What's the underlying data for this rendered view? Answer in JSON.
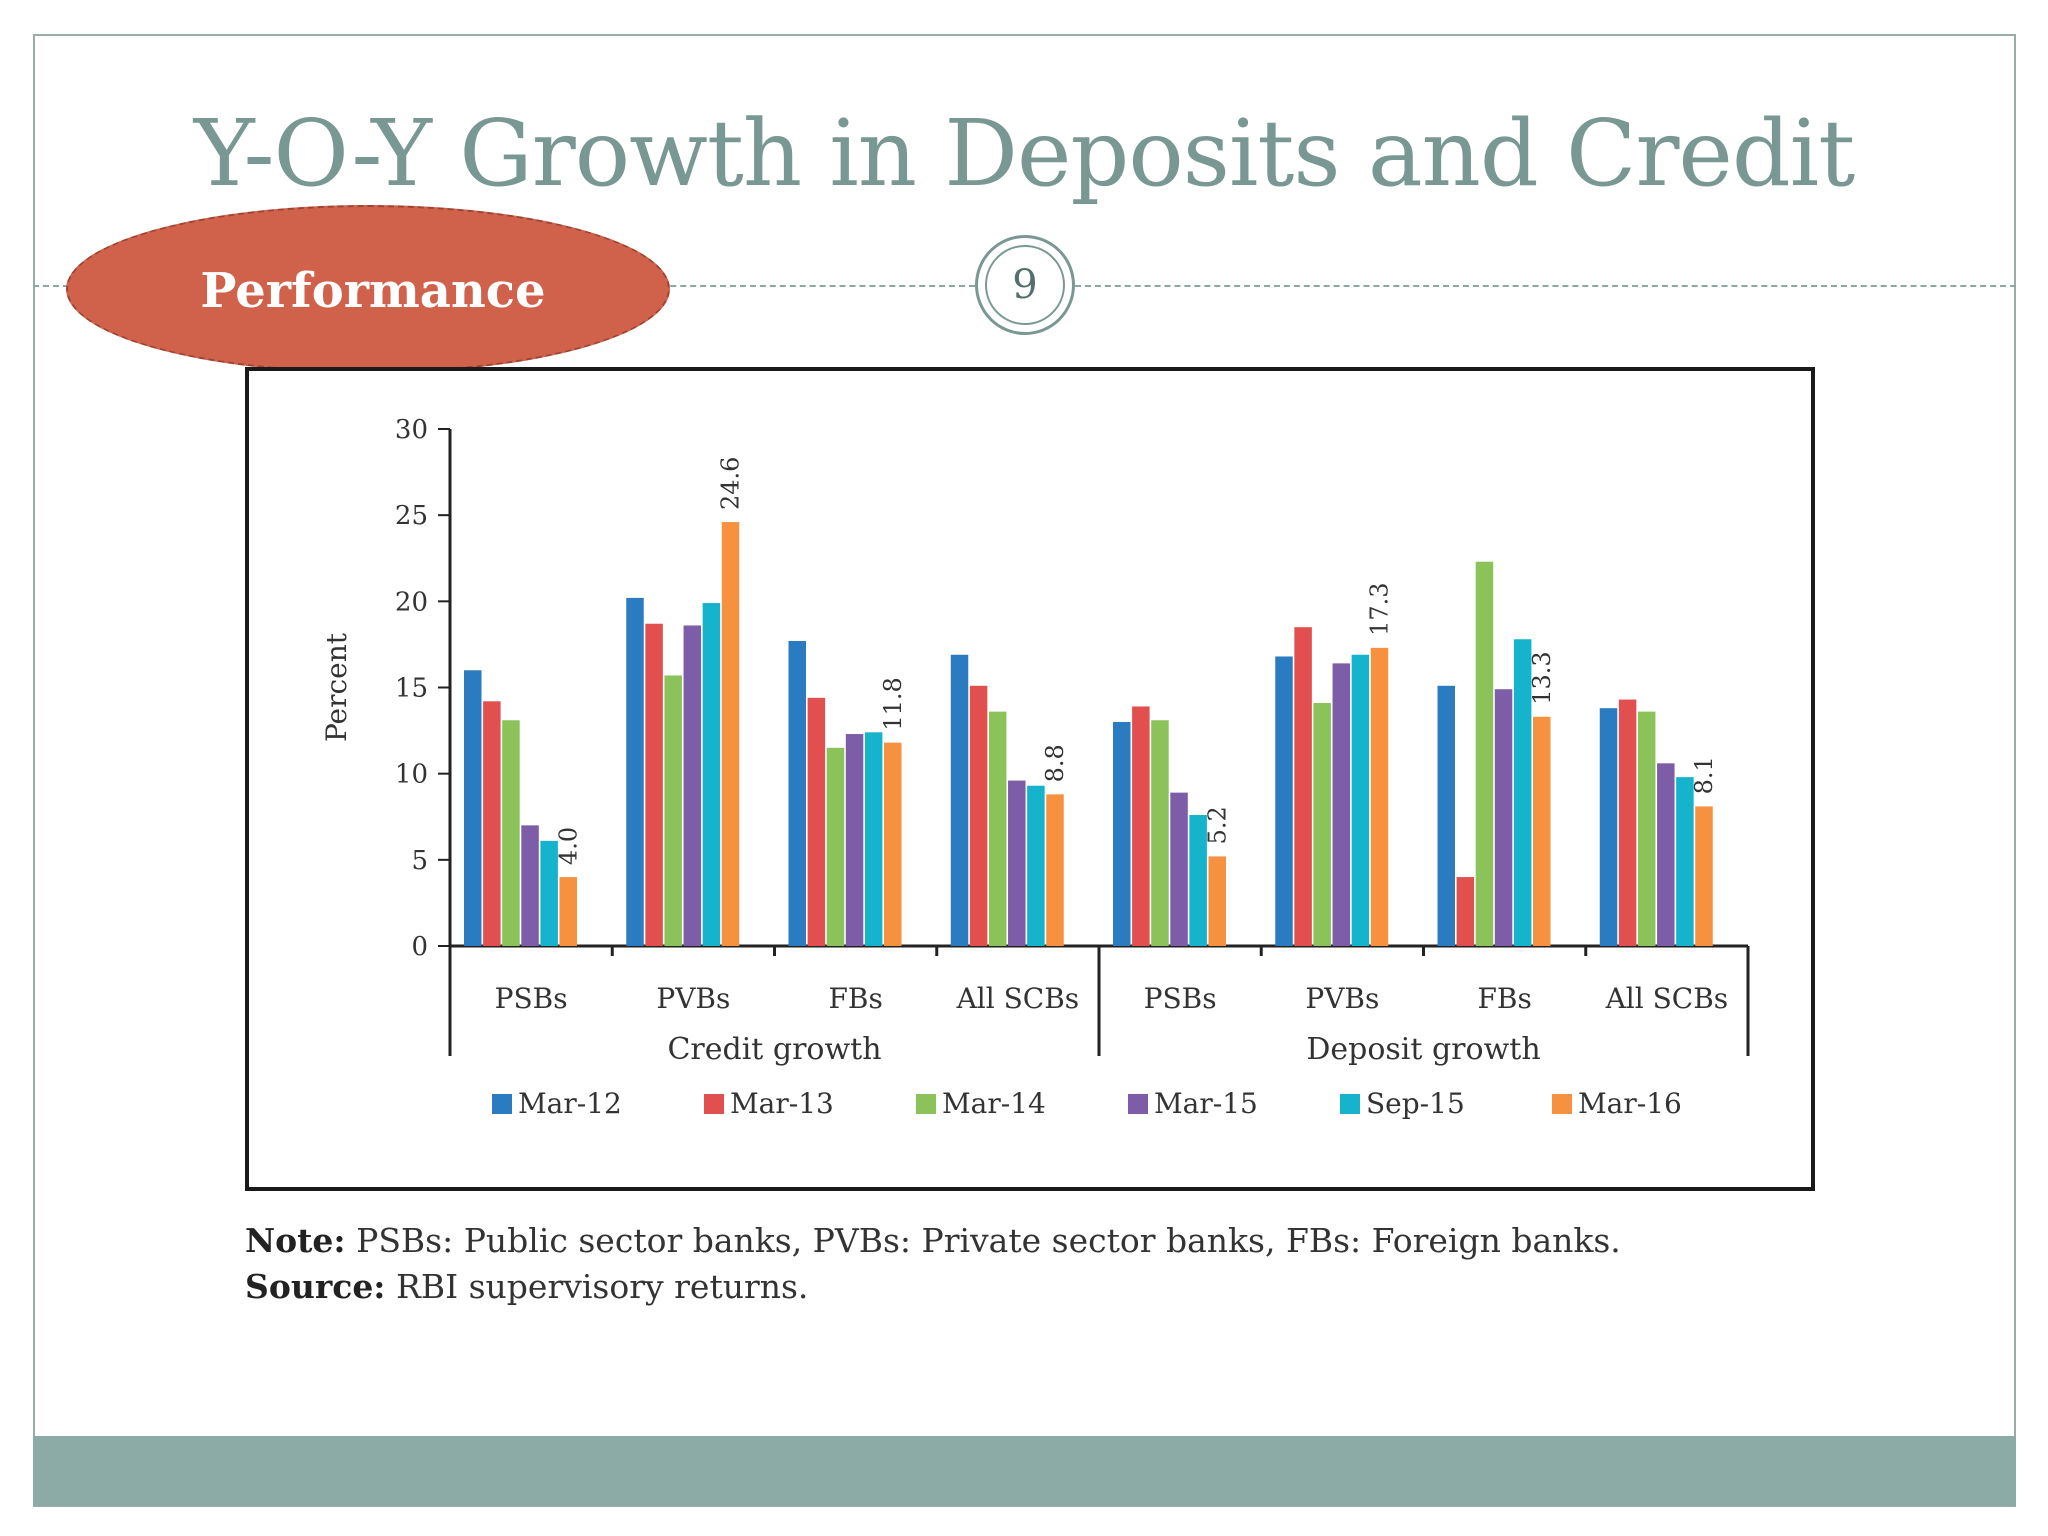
{
  "slide": {
    "title": "Y-O-Y Growth in Deposits and Credit",
    "badge": "Performance",
    "page_number": "9",
    "note_label": "Note:",
    "note_text": "PSBs: Public sector banks, PVBs: Private sector banks, FBs: Foreign banks.",
    "source_label": "Source:",
    "source_text": "RBI supervisory returns."
  },
  "colors": {
    "title": "#7a9893",
    "badge": "#d0624b",
    "band": "#8caba6"
  },
  "chart_data": {
    "type": "bar",
    "ylabel": "Percent",
    "ylim": [
      0,
      30
    ],
    "yticks": [
      "0",
      "5",
      "10",
      "15",
      "20",
      "25",
      "30"
    ],
    "groups": [
      {
        "label": "Credit growth",
        "categories": [
          "PSBs",
          "PVBs",
          "FBs",
          "All SCBs"
        ]
      },
      {
        "label": "Deposit growth",
        "categories": [
          "PSBs",
          "PVBs",
          "FBs",
          "All SCBs"
        ]
      }
    ],
    "series": [
      {
        "name": "Mar-12",
        "color": "#2b7bc0",
        "values": [
          16.0,
          20.2,
          17.7,
          16.9,
          13.0,
          16.8,
          15.1,
          13.8
        ]
      },
      {
        "name": "Mar-13",
        "color": "#e1504f",
        "values": [
          14.2,
          18.7,
          14.4,
          15.1,
          13.9,
          18.5,
          4.0,
          14.3
        ]
      },
      {
        "name": "Mar-14",
        "color": "#8bc35a",
        "values": [
          13.1,
          15.7,
          11.5,
          13.6,
          13.1,
          14.1,
          22.3,
          13.6
        ]
      },
      {
        "name": "Mar-15",
        "color": "#7e5da8",
        "values": [
          7.0,
          18.6,
          12.3,
          9.6,
          8.9,
          16.4,
          14.9,
          10.6
        ]
      },
      {
        "name": "Sep-15",
        "color": "#16b3cc",
        "values": [
          6.1,
          19.9,
          12.4,
          9.3,
          7.6,
          16.9,
          17.8,
          9.8
        ]
      },
      {
        "name": "Mar-16",
        "color": "#f6923f",
        "values": [
          4.0,
          24.6,
          11.8,
          8.8,
          5.2,
          17.3,
          13.3,
          8.1
        ]
      }
    ],
    "data_labels": [
      {
        "group_index": 0,
        "series": "Mar-16",
        "text": "4.0"
      },
      {
        "group_index": 1,
        "series": "Mar-16",
        "text": "24.6"
      },
      {
        "group_index": 2,
        "series": "Mar-16",
        "text": "11.8"
      },
      {
        "group_index": 3,
        "series": "Mar-16",
        "text": "8.8"
      },
      {
        "group_index": 4,
        "series": "Mar-16",
        "text": "5.2"
      },
      {
        "group_index": 5,
        "series": "Mar-16",
        "text": "17.3"
      },
      {
        "group_index": 6,
        "series": "Mar-16",
        "text": "13.3"
      },
      {
        "group_index": 7,
        "series": "Mar-16",
        "text": "8.1"
      }
    ],
    "legend_position": "bottom",
    "grid": false
  }
}
